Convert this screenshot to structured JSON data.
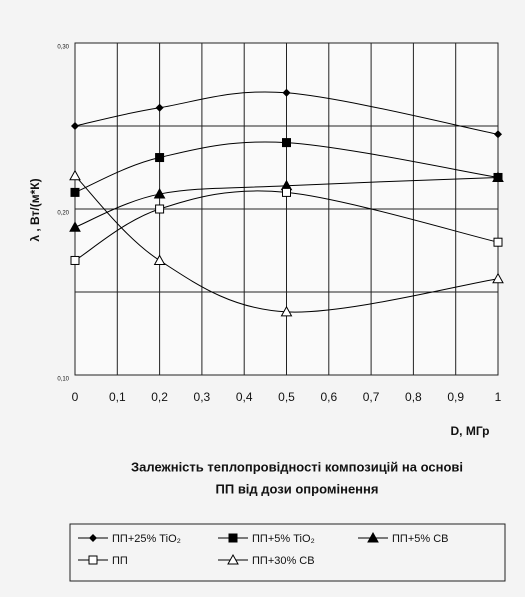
{
  "chart_data": {
    "type": "line",
    "title": [
      "Залежність теплопровідності композицій на основі",
      "ПП від дози опромінення"
    ],
    "x_label": "D, МГр",
    "y_label": "λ , Вт/(м*К)",
    "x": [
      0,
      0.2,
      0.5,
      1
    ],
    "series": [
      {
        "name": "ПП+25% TiO₂",
        "marker": "diamond",
        "color": "#000000",
        "values": [
          0.25,
          0.261,
          0.27,
          0.245
        ]
      },
      {
        "name": "ПП+5% TiO₂",
        "marker": "square",
        "color": "#000000",
        "values": [
          0.21,
          0.231,
          0.24,
          0.219
        ]
      },
      {
        "name": "ПП+5% СВ",
        "marker": "triangle",
        "color": "#000000",
        "values": [
          0.189,
          0.209,
          0.214,
          0.219
        ]
      },
      {
        "name": "ПП",
        "marker": "open-square",
        "color": "#000000",
        "values": [
          0.169,
          0.2,
          0.21,
          0.18
        ]
      },
      {
        "name": "ПП+30% СВ",
        "marker": "open-triangle",
        "color": "#000000",
        "values": [
          0.22,
          0.169,
          0.138,
          0.158
        ]
      }
    ],
    "xlim": [
      0,
      1
    ],
    "xticks": [
      0,
      {
        "value": 0.1,
        "label": "0,1"
      },
      {
        "value": 0.2,
        "label": "0,2"
      },
      {
        "value": 0.3,
        "label": "0,3"
      },
      {
        "value": 0.4,
        "label": "0,4"
      },
      {
        "value": 0.5,
        "label": "0,5"
      },
      {
        "value": 0.6,
        "label": "0,6"
      },
      {
        "value": 0.7,
        "label": "0,7"
      },
      {
        "value": 0.8,
        "label": "0,8"
      },
      {
        "value": 0.9,
        "label": "0,9"
      },
      1
    ],
    "ylim": [
      0.1,
      0.3
    ],
    "yticks": [
      {
        "value": 0.1,
        "label": "0,10"
      },
      {
        "value": 0.2,
        "label": "0,20"
      },
      {
        "value": 0.3,
        "label": "0,30"
      }
    ],
    "ygrid": [
      0.15,
      0.25
    ],
    "grid": true,
    "legend": "bottom"
  }
}
